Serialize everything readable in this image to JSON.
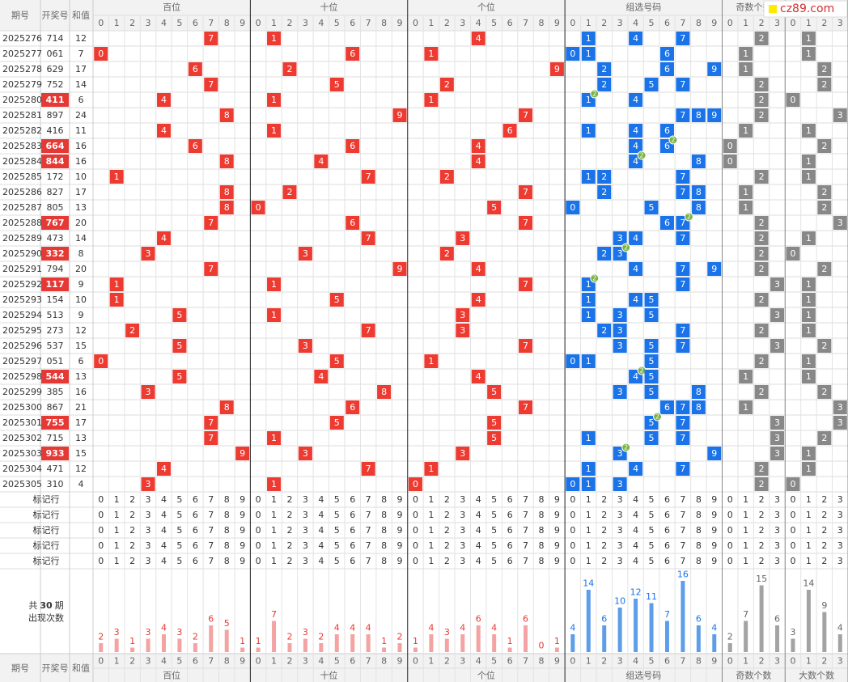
{
  "header": {
    "period": "期号",
    "number": "开奖号",
    "sum": "和值"
  },
  "groups": [
    {
      "label": "百位",
      "digits": [
        0,
        1,
        2,
        3,
        4,
        5,
        6,
        7,
        8,
        9
      ]
    },
    {
      "label": "十位",
      "digits": [
        0,
        1,
        2,
        3,
        4,
        5,
        6,
        7,
        8,
        9
      ]
    },
    {
      "label": "个位",
      "digits": [
        0,
        1,
        2,
        3,
        4,
        5,
        6,
        7,
        8,
        9
      ]
    },
    {
      "label": "组选号码",
      "digits": [
        0,
        1,
        2,
        3,
        4,
        5,
        6,
        7,
        8,
        9
      ]
    },
    {
      "label": "奇数个数",
      "digits": [
        0,
        1,
        2,
        3
      ]
    },
    {
      "label": "大数个数",
      "digits": [
        0,
        1,
        2,
        3
      ]
    }
  ],
  "rows": [
    {
      "period": "2025276",
      "number": "714",
      "sum": 12,
      "digits": [
        7,
        1,
        4
      ],
      "group": [
        1,
        4,
        7
      ],
      "odd": 2,
      "big": 1
    },
    {
      "period": "2025277",
      "number": "061",
      "sum": 7,
      "digits": [
        0,
        6,
        1
      ],
      "group": [
        0,
        1,
        6
      ],
      "odd": 1,
      "big": 1
    },
    {
      "period": "2025278",
      "number": "629",
      "sum": 17,
      "digits": [
        6,
        2,
        9
      ],
      "group": [
        2,
        6,
        9
      ],
      "odd": 1,
      "big": 2
    },
    {
      "period": "2025279",
      "number": "752",
      "sum": 14,
      "digits": [
        7,
        5,
        2
      ],
      "group": [
        2,
        5,
        7
      ],
      "odd": 2,
      "big": 2
    },
    {
      "period": "2025280",
      "number": "411",
      "sum": 6,
      "digits": [
        4,
        1,
        1
      ],
      "group": [
        1,
        4
      ],
      "repeat_digit": 1,
      "repeat_count": 2,
      "odd": 2,
      "big": 0
    },
    {
      "period": "2025281",
      "number": "897",
      "sum": 24,
      "digits": [
        8,
        9,
        7
      ],
      "group": [
        7,
        8,
        9
      ],
      "odd": 2,
      "big": 3
    },
    {
      "period": "2025282",
      "number": "416",
      "sum": 11,
      "digits": [
        4,
        1,
        6
      ],
      "group": [
        1,
        4,
        6
      ],
      "odd": 1,
      "big": 1
    },
    {
      "period": "2025283",
      "number": "664",
      "sum": 16,
      "digits": [
        6,
        6,
        4
      ],
      "group": [
        4,
        6
      ],
      "repeat_digit": 6,
      "repeat_count": 2,
      "odd": 0,
      "big": 2
    },
    {
      "period": "2025284",
      "number": "844",
      "sum": 16,
      "digits": [
        8,
        4,
        4
      ],
      "group": [
        4,
        8
      ],
      "repeat_digit": 4,
      "repeat_count": 2,
      "odd": 0,
      "big": 1
    },
    {
      "period": "2025285",
      "number": "172",
      "sum": 10,
      "digits": [
        1,
        7,
        2
      ],
      "group": [
        1,
        2,
        7
      ],
      "odd": 2,
      "big": 1
    },
    {
      "period": "2025286",
      "number": "827",
      "sum": 17,
      "digits": [
        8,
        2,
        7
      ],
      "group": [
        2,
        7,
        8
      ],
      "odd": 1,
      "big": 2
    },
    {
      "period": "2025287",
      "number": "805",
      "sum": 13,
      "digits": [
        8,
        0,
        5
      ],
      "group": [
        0,
        5,
        8
      ],
      "odd": 1,
      "big": 2
    },
    {
      "period": "2025288",
      "number": "767",
      "sum": 20,
      "digits": [
        7,
        6,
        7
      ],
      "group": [
        6,
        7
      ],
      "repeat_digit": 7,
      "repeat_count": 2,
      "odd": 2,
      "big": 3
    },
    {
      "period": "2025289",
      "number": "473",
      "sum": 14,
      "digits": [
        4,
        7,
        3
      ],
      "group": [
        3,
        4,
        7
      ],
      "odd": 2,
      "big": 1
    },
    {
      "period": "2025290",
      "number": "332",
      "sum": 8,
      "digits": [
        3,
        3,
        2
      ],
      "group": [
        2,
        3
      ],
      "repeat_digit": 3,
      "repeat_count": 2,
      "odd": 2,
      "big": 0
    },
    {
      "period": "2025291",
      "number": "794",
      "sum": 20,
      "digits": [
        7,
        9,
        4
      ],
      "group": [
        4,
        7,
        9
      ],
      "odd": 2,
      "big": 2
    },
    {
      "period": "2025292",
      "number": "117",
      "sum": 9,
      "digits": [
        1,
        1,
        7
      ],
      "group": [
        1,
        7
      ],
      "repeat_digit": 1,
      "repeat_count": 2,
      "odd": 3,
      "big": 1
    },
    {
      "period": "2025293",
      "number": "154",
      "sum": 10,
      "digits": [
        1,
        5,
        4
      ],
      "group": [
        1,
        4,
        5
      ],
      "odd": 2,
      "big": 1
    },
    {
      "period": "2025294",
      "number": "513",
      "sum": 9,
      "digits": [
        5,
        1,
        3
      ],
      "group": [
        1,
        3,
        5
      ],
      "odd": 3,
      "big": 1
    },
    {
      "period": "2025295",
      "number": "273",
      "sum": 12,
      "digits": [
        2,
        7,
        3
      ],
      "group": [
        2,
        3,
        7
      ],
      "odd": 2,
      "big": 1
    },
    {
      "period": "2025296",
      "number": "537",
      "sum": 15,
      "digits": [
        5,
        3,
        7
      ],
      "group": [
        3,
        5,
        7
      ],
      "odd": 3,
      "big": 2
    },
    {
      "period": "2025297",
      "number": "051",
      "sum": 6,
      "digits": [
        0,
        5,
        1
      ],
      "group": [
        0,
        1,
        5
      ],
      "odd": 2,
      "big": 1
    },
    {
      "period": "2025298",
      "number": "544",
      "sum": 13,
      "digits": [
        5,
        4,
        4
      ],
      "group": [
        4,
        5
      ],
      "repeat_digit": 4,
      "repeat_count": 2,
      "odd": 1,
      "big": 1
    },
    {
      "period": "2025299",
      "number": "385",
      "sum": 16,
      "digits": [
        3,
        8,
        5
      ],
      "group": [
        3,
        5,
        8
      ],
      "odd": 2,
      "big": 2
    },
    {
      "period": "2025300",
      "number": "867",
      "sum": 21,
      "digits": [
        8,
        6,
        7
      ],
      "group": [
        6,
        7,
        8
      ],
      "odd": 1,
      "big": 3
    },
    {
      "period": "2025301",
      "number": "755",
      "sum": 17,
      "digits": [
        7,
        5,
        5
      ],
      "group": [
        5,
        7
      ],
      "repeat_digit": 5,
      "repeat_count": 2,
      "odd": 3,
      "big": 3
    },
    {
      "period": "2025302",
      "number": "715",
      "sum": 13,
      "digits": [
        7,
        1,
        5
      ],
      "group": [
        1,
        5,
        7
      ],
      "odd": 3,
      "big": 2
    },
    {
      "period": "2025303",
      "number": "933",
      "sum": 15,
      "digits": [
        9,
        3,
        3
      ],
      "group": [
        3,
        9
      ],
      "repeat_digit": 3,
      "repeat_count": 2,
      "odd": 3,
      "big": 1
    },
    {
      "period": "2025304",
      "number": "471",
      "sum": 12,
      "digits": [
        4,
        7,
        1
      ],
      "group": [
        1,
        4,
        7
      ],
      "odd": 2,
      "big": 1
    },
    {
      "period": "2025305",
      "number": "310",
      "sum": 4,
      "digits": [
        3,
        1,
        0
      ],
      "group": [
        0,
        1,
        3
      ],
      "odd": 2,
      "big": 0
    }
  ],
  "marker_rows": [
    "标记行",
    "标记行",
    "标记行",
    "标记行",
    "标记行"
  ],
  "stats": {
    "pre": "共",
    "periods": 30,
    "post": "期",
    "label": "出现次数",
    "counts": [
      [
        2,
        3,
        1,
        3,
        4,
        3,
        2,
        6,
        5,
        1
      ],
      [
        1,
        7,
        2,
        3,
        2,
        4,
        4,
        4,
        1,
        2
      ],
      [
        1,
        4,
        3,
        4,
        6,
        4,
        1,
        6,
        0,
        1
      ],
      [
        4,
        14,
        6,
        10,
        12,
        11,
        7,
        16,
        6,
        4
      ],
      [
        2,
        7,
        15,
        6
      ],
      [
        3,
        14,
        9,
        4
      ]
    ]
  },
  "watermark": "cz89.com"
}
